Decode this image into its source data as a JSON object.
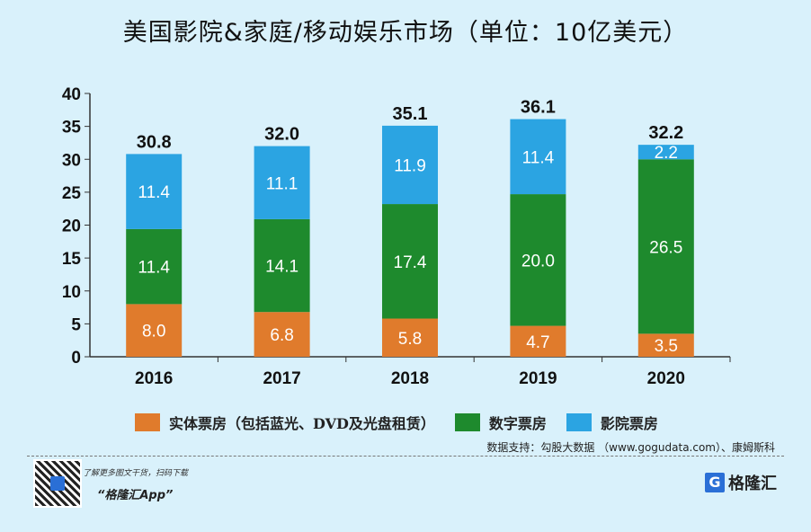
{
  "chart_data": {
    "type": "bar",
    "stacked": true,
    "title": "美国影院&家庭/移动娱乐市场（单位：10亿美元）",
    "categories": [
      "2016",
      "2017",
      "2018",
      "2019",
      "2020"
    ],
    "series": [
      {
        "name": "实体票房（包括蓝光、DVD及光盘租赁）",
        "color": "#e07b2c",
        "values": [
          8.0,
          6.8,
          5.8,
          4.7,
          3.5
        ]
      },
      {
        "name": "数字票房",
        "color": "#1e8a2d",
        "values": [
          11.4,
          14.1,
          17.4,
          20.0,
          26.5
        ]
      },
      {
        "name": "影院票房",
        "color": "#2ba4e2",
        "values": [
          11.4,
          11.1,
          11.9,
          11.4,
          2.2
        ]
      }
    ],
    "totals": [
      "30.8",
      "32.0",
      "35.1",
      "36.1",
      "32.2"
    ],
    "ylim": [
      0,
      40
    ],
    "yticks": [
      0,
      5,
      10,
      15,
      20,
      25,
      30,
      35,
      40
    ],
    "grid": false,
    "legend": "bottom"
  },
  "source": "数据支持：勾股大数据 （www.gogudata.com）、康姆斯科",
  "promo": {
    "line1": "了解更多图文干货，扫码下载",
    "line2": "“格隆汇App”"
  },
  "logo": {
    "text": "格隆汇",
    "mark": "G"
  }
}
